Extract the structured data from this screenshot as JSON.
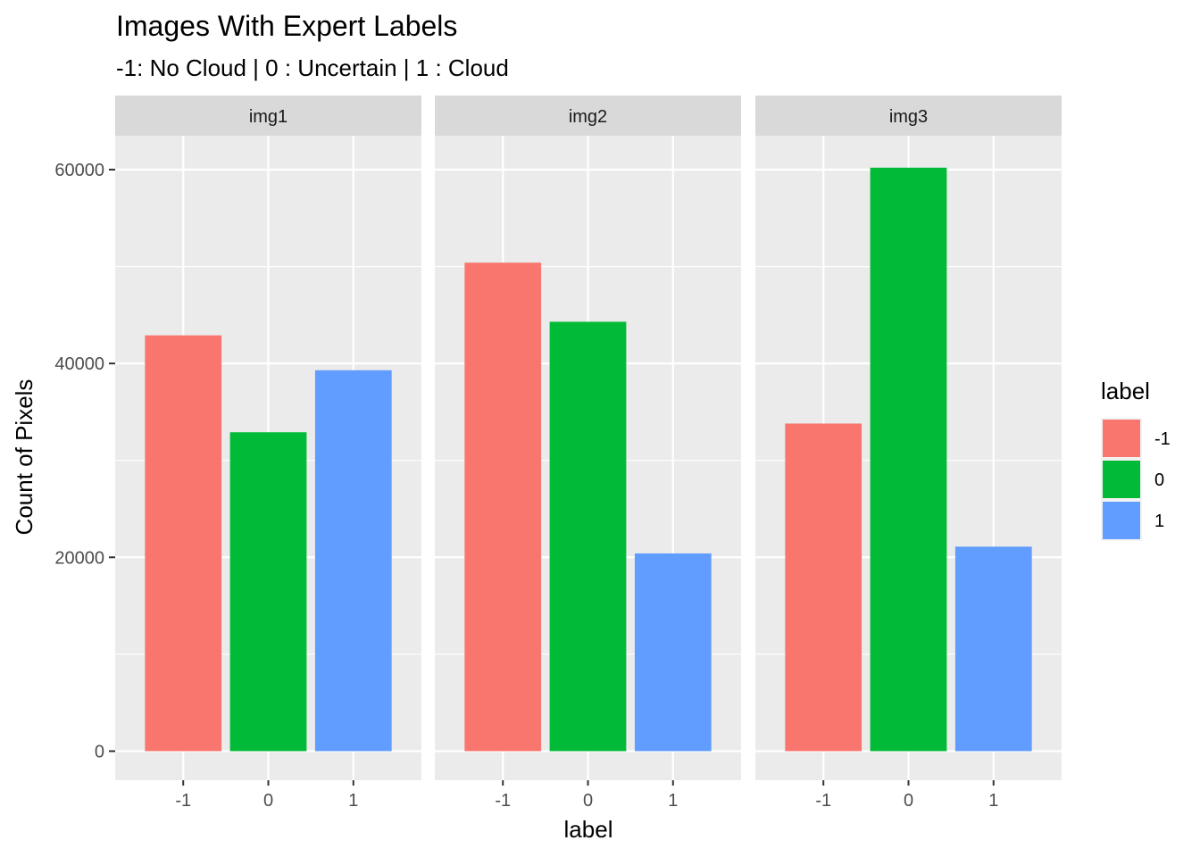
{
  "chart_data": {
    "type": "bar",
    "title": "Images With Expert Labels",
    "subtitle": "-1: No Cloud | 0 : Uncertain | 1 : Cloud",
    "xlabel": "label",
    "ylabel": "Count of Pixels",
    "ylim": [
      -3000,
      63500
    ],
    "yticks": [
      0,
      20000,
      40000,
      60000
    ],
    "ytick_labels": [
      "0",
      "20000",
      "40000",
      "60000"
    ],
    "categories": [
      "-1",
      "0",
      "1"
    ],
    "facets": [
      {
        "name": "img1",
        "values": [
          42900,
          32900,
          39300
        ]
      },
      {
        "name": "img2",
        "values": [
          50400,
          44300,
          20400
        ]
      },
      {
        "name": "img3",
        "values": [
          33800,
          60200,
          21100
        ]
      }
    ],
    "colors": {
      "-1": "#F8766D",
      "0": "#00BA38",
      "1": "#619CFF"
    },
    "legend": {
      "title": "label",
      "entries": [
        "-1",
        "0",
        "1"
      ],
      "position": "right"
    },
    "grid": true,
    "panel_background": "#EBEBEB",
    "strip_background": "#D9D9D9"
  }
}
